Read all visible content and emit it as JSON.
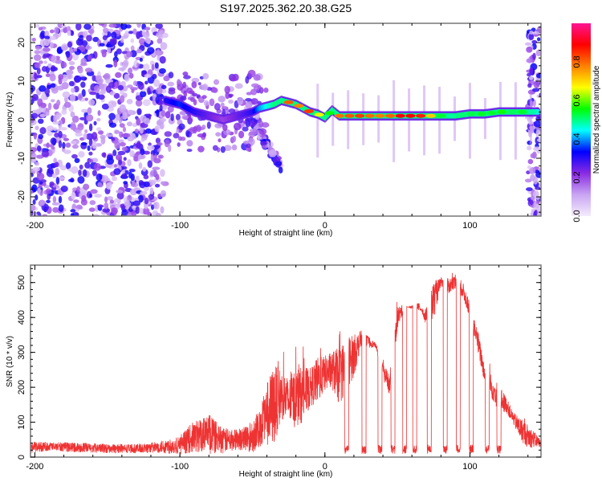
{
  "chart_data": [
    {
      "type": "heatmap",
      "title": "S197.2025.362.20.38.G25",
      "xlabel": "Height of straight line (km)",
      "ylabel": "Frequency (Hz)",
      "xlim": [
        -203,
        149
      ],
      "ylim": [
        -25,
        25
      ],
      "xticks": [
        -200,
        -100,
        0,
        100
      ],
      "xtick_labels": [
        "-200",
        "-100",
        "0",
        "100"
      ],
      "yticks": [
        -20,
        -10,
        0,
        10,
        20
      ],
      "ytick_labels": [
        "-20",
        "-10",
        "0",
        "10",
        "20"
      ],
      "grid": false,
      "colorbar": {
        "label": "Normalized spectral amplitude",
        "range": [
          0,
          1
        ],
        "ticks": [
          0.0,
          0.2,
          0.4,
          0.6,
          0.8
        ],
        "tick_labels": [
          "0.0",
          "0.2",
          "0.4",
          "0.6",
          "0.8"
        ],
        "colors": [
          "#f4ecfc",
          "#c9a5f2",
          "#8a2be2",
          "#0000ff",
          "#00ffff",
          "#00ff00",
          "#ffff00",
          "#ff8000",
          "#ff0000",
          "#ff1493"
        ]
      },
      "ridge": {
        "description": "dominant spectral ridge, frequency vs height",
        "x": [
          -110,
          -100,
          -90,
          -80,
          -70,
          -60,
          -50,
          -45,
          -40,
          -35,
          -30,
          -25,
          -20,
          -15,
          -10,
          -5,
          0,
          5,
          10,
          20,
          30,
          40,
          50,
          60,
          70,
          80,
          90,
          100,
          110,
          120,
          130,
          140,
          147
        ],
        "freq_hz": [
          5,
          4,
          2,
          1,
          0,
          1,
          2,
          3,
          3.5,
          4,
          5,
          4.5,
          4,
          3,
          2,
          1.5,
          0.5,
          2.5,
          1,
          1,
          1,
          1,
          1,
          1,
          1,
          1,
          1,
          1.5,
          1.5,
          2,
          2,
          2,
          2
        ],
        "amplitude": [
          0.3,
          0.35,
          0.3,
          0.25,
          0.2,
          0.25,
          0.3,
          0.4,
          0.45,
          0.5,
          0.55,
          0.9,
          0.85,
          0.9,
          0.9,
          0.8,
          0.5,
          0.6,
          0.9,
          0.85,
          0.9,
          0.9,
          0.95,
          0.95,
          0.9,
          0.6,
          0.55,
          0.55,
          0.65,
          0.6,
          0.55,
          0.5,
          0.45
        ]
      },
      "features": [
        {
          "name": "diffuse-noise",
          "x_range": [
            -203,
            -110
          ],
          "freq_range": [
            -25,
            25
          ],
          "amplitude": 0.15
        },
        {
          "name": "descending-branch",
          "x_range": [
            -55,
            -30
          ],
          "freq_range": [
            -12,
            2
          ],
          "amplitude": 0.2
        },
        {
          "name": "noise-right-edge",
          "x_range": [
            140,
            149
          ],
          "freq_range": [
            -25,
            25
          ],
          "amplitude": 0.15
        }
      ]
    },
    {
      "type": "line",
      "xlabel": "Height of straight line (km)",
      "ylabel": "SNR (10 * v/v)",
      "xlim": [
        -203,
        149
      ],
      "ylim": [
        0,
        550
      ],
      "xticks": [
        -200,
        -100,
        0,
        100
      ],
      "xtick_labels": [
        "-200",
        "-100",
        "0",
        "100"
      ],
      "yticks": [
        0,
        100,
        200,
        300,
        400,
        500
      ],
      "ytick_labels": [
        "0",
        "100",
        "200",
        "300",
        "400",
        "500"
      ],
      "grid": false,
      "series": [
        {
          "name": "SNR",
          "color": "#ee3333",
          "envelope_x": [
            -203,
            -190,
            -170,
            -150,
            -130,
            -115,
            -100,
            -90,
            -80,
            -70,
            -60,
            -50,
            -45,
            -40,
            -35,
            -30,
            -25,
            -20,
            -15,
            -10,
            -5,
            0,
            5,
            10,
            15,
            20,
            25,
            30,
            35,
            40,
            45,
            50,
            55,
            60,
            65,
            70,
            75,
            80,
            85,
            90,
            95,
            100,
            105,
            110,
            115,
            120,
            125,
            130,
            135,
            140,
            149
          ],
          "envelope_mean": [
            25,
            28,
            25,
            22,
            22,
            25,
            30,
            50,
            55,
            40,
            45,
            50,
            70,
            120,
            150,
            180,
            160,
            170,
            180,
            200,
            220,
            240,
            250,
            230,
            270,
            290,
            340,
            330,
            320,
            250,
            200,
            400,
            430,
            430,
            430,
            400,
            450,
            500,
            490,
            500,
            480,
            420,
            340,
            240,
            200,
            170,
            150,
            110,
            80,
            60,
            40
          ],
          "envelope_max": [
            60,
            55,
            55,
            50,
            50,
            60,
            90,
            150,
            180,
            120,
            110,
            150,
            200,
            290,
            360,
            310,
            280,
            330,
            320,
            300,
            340,
            330,
            350,
            380,
            410,
            400,
            380,
            360,
            330,
            290,
            260,
            460,
            440,
            420,
            410,
            450,
            550,
            520,
            530,
            540,
            520,
            460,
            400,
            290,
            260,
            240,
            190,
            140,
            140,
            120,
            60
          ],
          "dropouts": [
            {
              "x": 15,
              "snr": 20
            },
            {
              "x": 27,
              "snr": 20
            },
            {
              "x": 38,
              "snr": 20
            },
            {
              "x": 47,
              "snr": 10
            },
            {
              "x": 55,
              "snr": 20
            },
            {
              "x": 62,
              "snr": 20
            },
            {
              "x": 72,
              "snr": 20
            },
            {
              "x": 83,
              "snr": 20
            },
            {
              "x": 92,
              "snr": 20
            },
            {
              "x": 101,
              "snr": 20
            },
            {
              "x": 112,
              "snr": 10
            },
            {
              "x": 120,
              "snr": 10
            }
          ]
        }
      ]
    }
  ]
}
